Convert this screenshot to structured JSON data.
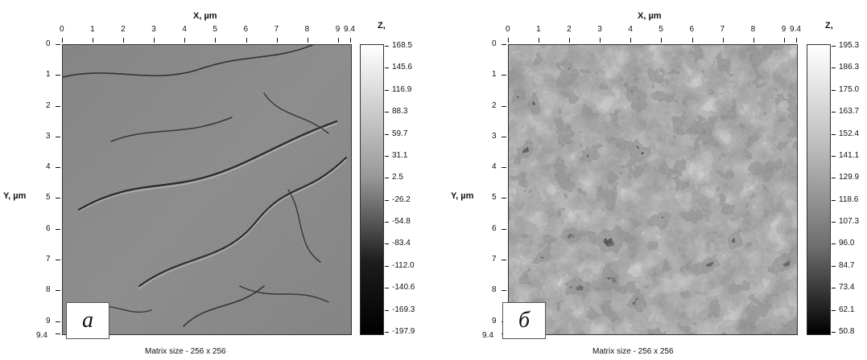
{
  "panels": [
    {
      "x_title": "X, µm",
      "y_title": "Y, µm",
      "z_title": "Z,",
      "x_ticks": [
        "0",
        "1",
        "2",
        "3",
        "4",
        "5",
        "6",
        "7",
        "8",
        "9",
        "9.4"
      ],
      "y_ticks": [
        "0",
        "1",
        "2",
        "3",
        "4",
        "5",
        "6",
        "7",
        "8",
        "9",
        "9.4"
      ],
      "colorbar": [
        "168.5",
        "145.6",
        "116.9",
        "88.3",
        "59.7",
        "31.1",
        "2.5",
        "-26.2",
        "-54.8",
        "-83.4",
        "-112.0",
        "-140.6",
        "-169.3",
        "-197.9"
      ],
      "label": "а",
      "caption": "Matrix size - 256 x 256"
    },
    {
      "x_title": "X, µm",
      "y_title": "Y, µm",
      "z_title": "Z,",
      "x_ticks": [
        "0",
        "1",
        "2",
        "3",
        "4",
        "5",
        "6",
        "7",
        "8",
        "9",
        "9.4"
      ],
      "y_ticks": [
        "0",
        "1",
        "2",
        "3",
        "4",
        "5",
        "6",
        "7",
        "8",
        "9",
        "9.4"
      ],
      "colorbar": [
        "195.3",
        "186.3",
        "175.0",
        "163.7",
        "152.4",
        "141.1",
        "129.9",
        "118.6",
        "107.3",
        "96.0",
        "84.7",
        "73.4",
        "62.1",
        "50.8"
      ],
      "label": "б",
      "caption": "Matrix size - 256 x 256"
    }
  ]
}
